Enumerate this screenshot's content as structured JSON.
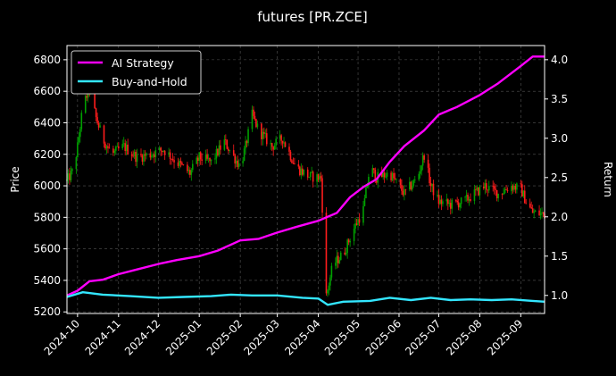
{
  "chart_data": {
    "type": "candlestick+line",
    "title": "futures [PR.ZCE]",
    "x_ticks": [
      "2024-10",
      "2024-11",
      "2024-12",
      "2025-01",
      "2025-02",
      "2025-03",
      "2025-04",
      "2025-05",
      "2025-06",
      "2025-07",
      "2025-08",
      "2025-09"
    ],
    "xlim": [
      "2024-09-23",
      "2025-09-19"
    ],
    "left_axis": {
      "label": "Price",
      "ylim": [
        5190,
        6890
      ],
      "ticks": [
        5200,
        5400,
        5600,
        5800,
        6000,
        6200,
        6400,
        6600,
        6800
      ]
    },
    "right_axis": {
      "label": "Return",
      "ylim": [
        0.77,
        4.18
      ],
      "ticks": [
        "1.0",
        "1.5",
        "2.0",
        "2.5",
        "3.0",
        "3.5",
        "4.0"
      ]
    },
    "grid": true,
    "legend": {
      "placement": "top-left"
    },
    "colors": {
      "up": "#00a000",
      "down": "#ff1c1c",
      "ai": "#ff00ff",
      "bh": "#33e6ff",
      "grid": "#555555",
      "background": "#000000",
      "text": "#ffffff"
    },
    "series": [
      {
        "name": "AI Strategy",
        "axis": "right",
        "points": [
          [
            "2024-09-23",
            1.0
          ],
          [
            "2024-10-01",
            1.06
          ],
          [
            "2024-10-10",
            1.18
          ],
          [
            "2024-10-20",
            1.2
          ],
          [
            "2024-11-01",
            1.27
          ],
          [
            "2024-11-15",
            1.33
          ],
          [
            "2024-12-01",
            1.4
          ],
          [
            "2024-12-15",
            1.45
          ],
          [
            "2025-01-01",
            1.5
          ],
          [
            "2025-01-15",
            1.57
          ],
          [
            "2025-02-01",
            1.7
          ],
          [
            "2025-02-15",
            1.72
          ],
          [
            "2025-03-01",
            1.8
          ],
          [
            "2025-03-15",
            1.87
          ],
          [
            "2025-04-01",
            1.95
          ],
          [
            "2025-04-15",
            2.05
          ],
          [
            "2025-04-25",
            2.25
          ],
          [
            "2025-05-05",
            2.38
          ],
          [
            "2025-05-15",
            2.48
          ],
          [
            "2025-05-25",
            2.7
          ],
          [
            "2025-06-05",
            2.9
          ],
          [
            "2025-06-20",
            3.1
          ],
          [
            "2025-07-01",
            3.3
          ],
          [
            "2025-07-15",
            3.4
          ],
          [
            "2025-08-01",
            3.55
          ],
          [
            "2025-08-15",
            3.7
          ],
          [
            "2025-09-01",
            3.92
          ],
          [
            "2025-09-10",
            4.04
          ],
          [
            "2025-09-19",
            4.04
          ]
        ]
      },
      {
        "name": "Buy-and-Hold",
        "axis": "right",
        "points": [
          [
            "2024-09-23",
            0.98
          ],
          [
            "2024-10-05",
            1.04
          ],
          [
            "2024-10-20",
            1.01
          ],
          [
            "2024-11-10",
            0.99
          ],
          [
            "2024-12-01",
            0.97
          ],
          [
            "2024-12-20",
            0.98
          ],
          [
            "2025-01-10",
            0.99
          ],
          [
            "2025-01-25",
            1.01
          ],
          [
            "2025-02-10",
            1.0
          ],
          [
            "2025-03-01",
            1.0
          ],
          [
            "2025-03-20",
            0.97
          ],
          [
            "2025-04-01",
            0.96
          ],
          [
            "2025-04-08",
            0.88
          ],
          [
            "2025-04-20",
            0.92
          ],
          [
            "2025-05-10",
            0.93
          ],
          [
            "2025-05-25",
            0.97
          ],
          [
            "2025-06-10",
            0.94
          ],
          [
            "2025-06-25",
            0.97
          ],
          [
            "2025-07-10",
            0.94
          ],
          [
            "2025-07-25",
            0.95
          ],
          [
            "2025-08-10",
            0.94
          ],
          [
            "2025-08-25",
            0.95
          ],
          [
            "2025-09-10",
            0.93
          ],
          [
            "2025-09-19",
            0.92
          ]
        ]
      }
    ],
    "price_anchors": [
      [
        "2024-09-23",
        6030
      ],
      [
        "2024-09-28",
        6100
      ],
      [
        "2024-10-01",
        6250
      ],
      [
        "2024-10-05",
        6500
      ],
      [
        "2024-10-10",
        6620
      ],
      [
        "2024-10-15",
        6430
      ],
      [
        "2024-10-20",
        6300
      ],
      [
        "2024-10-27",
        6200
      ],
      [
        "2024-11-05",
        6250
      ],
      [
        "2024-11-15",
        6180
      ],
      [
        "2024-11-25",
        6200
      ],
      [
        "2024-12-05",
        6230
      ],
      [
        "2024-12-15",
        6150
      ],
      [
        "2024-12-25",
        6080
      ],
      [
        "2025-01-01",
        6180
      ],
      [
        "2025-01-10",
        6150
      ],
      [
        "2025-01-20",
        6280
      ],
      [
        "2025-02-01",
        6120
      ],
      [
        "2025-02-05",
        6250
      ],
      [
        "2025-02-10",
        6450
      ],
      [
        "2025-02-15",
        6350
      ],
      [
        "2025-02-25",
        6250
      ],
      [
        "2025-03-05",
        6300
      ],
      [
        "2025-03-15",
        6120
      ],
      [
        "2025-03-25",
        6060
      ],
      [
        "2025-04-03",
        6050
      ],
      [
        "2025-04-07",
        5300
      ],
      [
        "2025-04-12",
        5500
      ],
      [
        "2025-04-20",
        5570
      ],
      [
        "2025-04-28",
        5730
      ],
      [
        "2025-05-05",
        5850
      ],
      [
        "2025-05-10",
        6120
      ],
      [
        "2025-05-15",
        6050
      ],
      [
        "2025-05-25",
        6080
      ],
      [
        "2025-06-05",
        5950
      ],
      [
        "2025-06-15",
        6050
      ],
      [
        "2025-06-20",
        6200
      ],
      [
        "2025-06-25",
        6000
      ],
      [
        "2025-07-01",
        5900
      ],
      [
        "2025-07-10",
        5880
      ],
      [
        "2025-07-20",
        5900
      ],
      [
        "2025-07-28",
        5950
      ],
      [
        "2025-08-05",
        6000
      ],
      [
        "2025-08-15",
        5950
      ],
      [
        "2025-08-25",
        6000
      ],
      [
        "2025-09-01",
        5980
      ],
      [
        "2025-09-05",
        5900
      ],
      [
        "2025-09-10",
        5830
      ],
      [
        "2025-09-19",
        5820
      ]
    ]
  }
}
